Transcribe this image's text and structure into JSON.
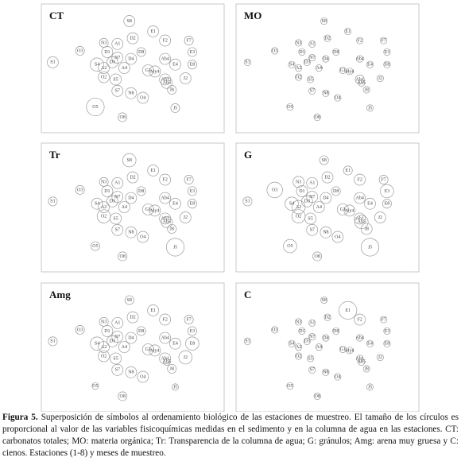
{
  "chart_data": [
    {
      "type": "scatter",
      "title": "CT",
      "sizes": [
        5,
        5,
        5,
        5,
        4,
        4,
        5,
        4,
        5,
        4,
        4,
        5,
        5,
        5,
        5,
        5,
        5,
        4,
        5,
        5,
        6,
        5,
        5,
        5,
        5,
        5,
        5,
        5,
        4,
        4,
        8,
        4,
        5,
        5,
        5
      ]
    },
    {
      "type": "scatter",
      "title": "MO",
      "sizes": [
        3,
        3,
        3,
        3,
        3,
        3,
        3,
        3,
        3,
        3,
        3,
        3,
        3,
        3,
        3,
        3,
        3,
        3,
        3,
        3,
        3,
        3,
        4,
        3,
        3,
        3,
        3,
        3,
        3,
        3,
        3,
        3,
        3,
        3,
        3
      ]
    },
    {
      "type": "scatter",
      "title": "Tr",
      "sizes": [
        6,
        5,
        5,
        5,
        4,
        4,
        5,
        4,
        5,
        4,
        4,
        5,
        5,
        5,
        5,
        4,
        5,
        4,
        5,
        6,
        5,
        5,
        5,
        5,
        5,
        5,
        5,
        5,
        4,
        8,
        4,
        4,
        5,
        5,
        5
      ]
    },
    {
      "type": "scatter",
      "title": "G",
      "sizes": [
        4,
        4,
        5,
        5,
        4,
        5,
        5,
        7,
        5,
        6,
        4,
        5,
        5,
        5,
        5,
        4,
        6,
        4,
        5,
        6,
        6,
        5,
        5,
        5,
        5,
        5,
        5,
        5,
        5,
        8,
        6,
        4,
        6,
        5,
        5
      ]
    },
    {
      "type": "scatter",
      "title": "Amg",
      "sizes": [
        4,
        5,
        5,
        5,
        4,
        4,
        5,
        4,
        5,
        4,
        4,
        5,
        5,
        5,
        5,
        4,
        5,
        6,
        5,
        5,
        6,
        5,
        5,
        6,
        5,
        5,
        5,
        5,
        4,
        3,
        3,
        4,
        3,
        5,
        5
      ]
    },
    {
      "type": "scatter",
      "title": "C",
      "sizes": [
        3,
        8,
        3,
        5,
        3,
        3,
        3,
        3,
        3,
        3,
        3,
        3,
        3,
        3,
        3,
        3,
        3,
        3,
        3,
        3,
        3,
        3,
        3,
        3,
        3,
        3,
        3,
        3,
        3,
        3,
        3,
        3,
        3,
        3,
        3
      ]
    }
  ],
  "ordination": {
    "labels": [
      "S8",
      "E1",
      "D2",
      "F2",
      "F7",
      "N3",
      "A1",
      "O3",
      "D1",
      "E3",
      "D8",
      "N7",
      "D4",
      "D3",
      "Ab4",
      "S1",
      "A2",
      "E8",
      "A4",
      "O2",
      "S4",
      "My4",
      "Ab1",
      "J2",
      "S5",
      "S7",
      "N8",
      "O4",
      "J8",
      "J5",
      "O5",
      "O8",
      "Ab5",
      "E4",
      "G1"
    ],
    "x": [
      48,
      62,
      50,
      69,
      83,
      33,
      41,
      19,
      35,
      85,
      55,
      41,
      49,
      38,
      69,
      3,
      33,
      85,
      45,
      33,
      29,
      63,
      69,
      81,
      40,
      41,
      49,
      56,
      73,
      75,
      28,
      44,
      70,
      75,
      59
    ],
    "y": [
      8,
      17,
      23,
      25,
      25,
      27,
      28,
      34,
      35,
      35,
      35,
      40,
      41,
      44,
      41,
      44,
      49,
      46,
      49,
      57,
      46,
      52,
      59,
      58,
      59,
      69,
      71,
      75,
      68,
      84,
      83,
      92,
      62,
      46,
      51
    ],
    "xlim": [
      0,
      100
    ],
    "ylim": [
      0,
      100
    ]
  },
  "caption": {
    "label": "Figura 5.",
    "text": "Superposición de símbolos al ordenamiento biológico de las estaciones de muestreo. El tamaño de los círculos es proporcional al valor de las variables fisicoquímicas medidas en el sedimento y en la columna de agua en las estaciones. CT: carbonatos totales; MO: materia orgánica; Tr: Transparencia de la columna de agua; G: gránulos; Amg: arena muy gruesa y C: cienos. Estaciones (1-8) y meses de muestreo."
  }
}
